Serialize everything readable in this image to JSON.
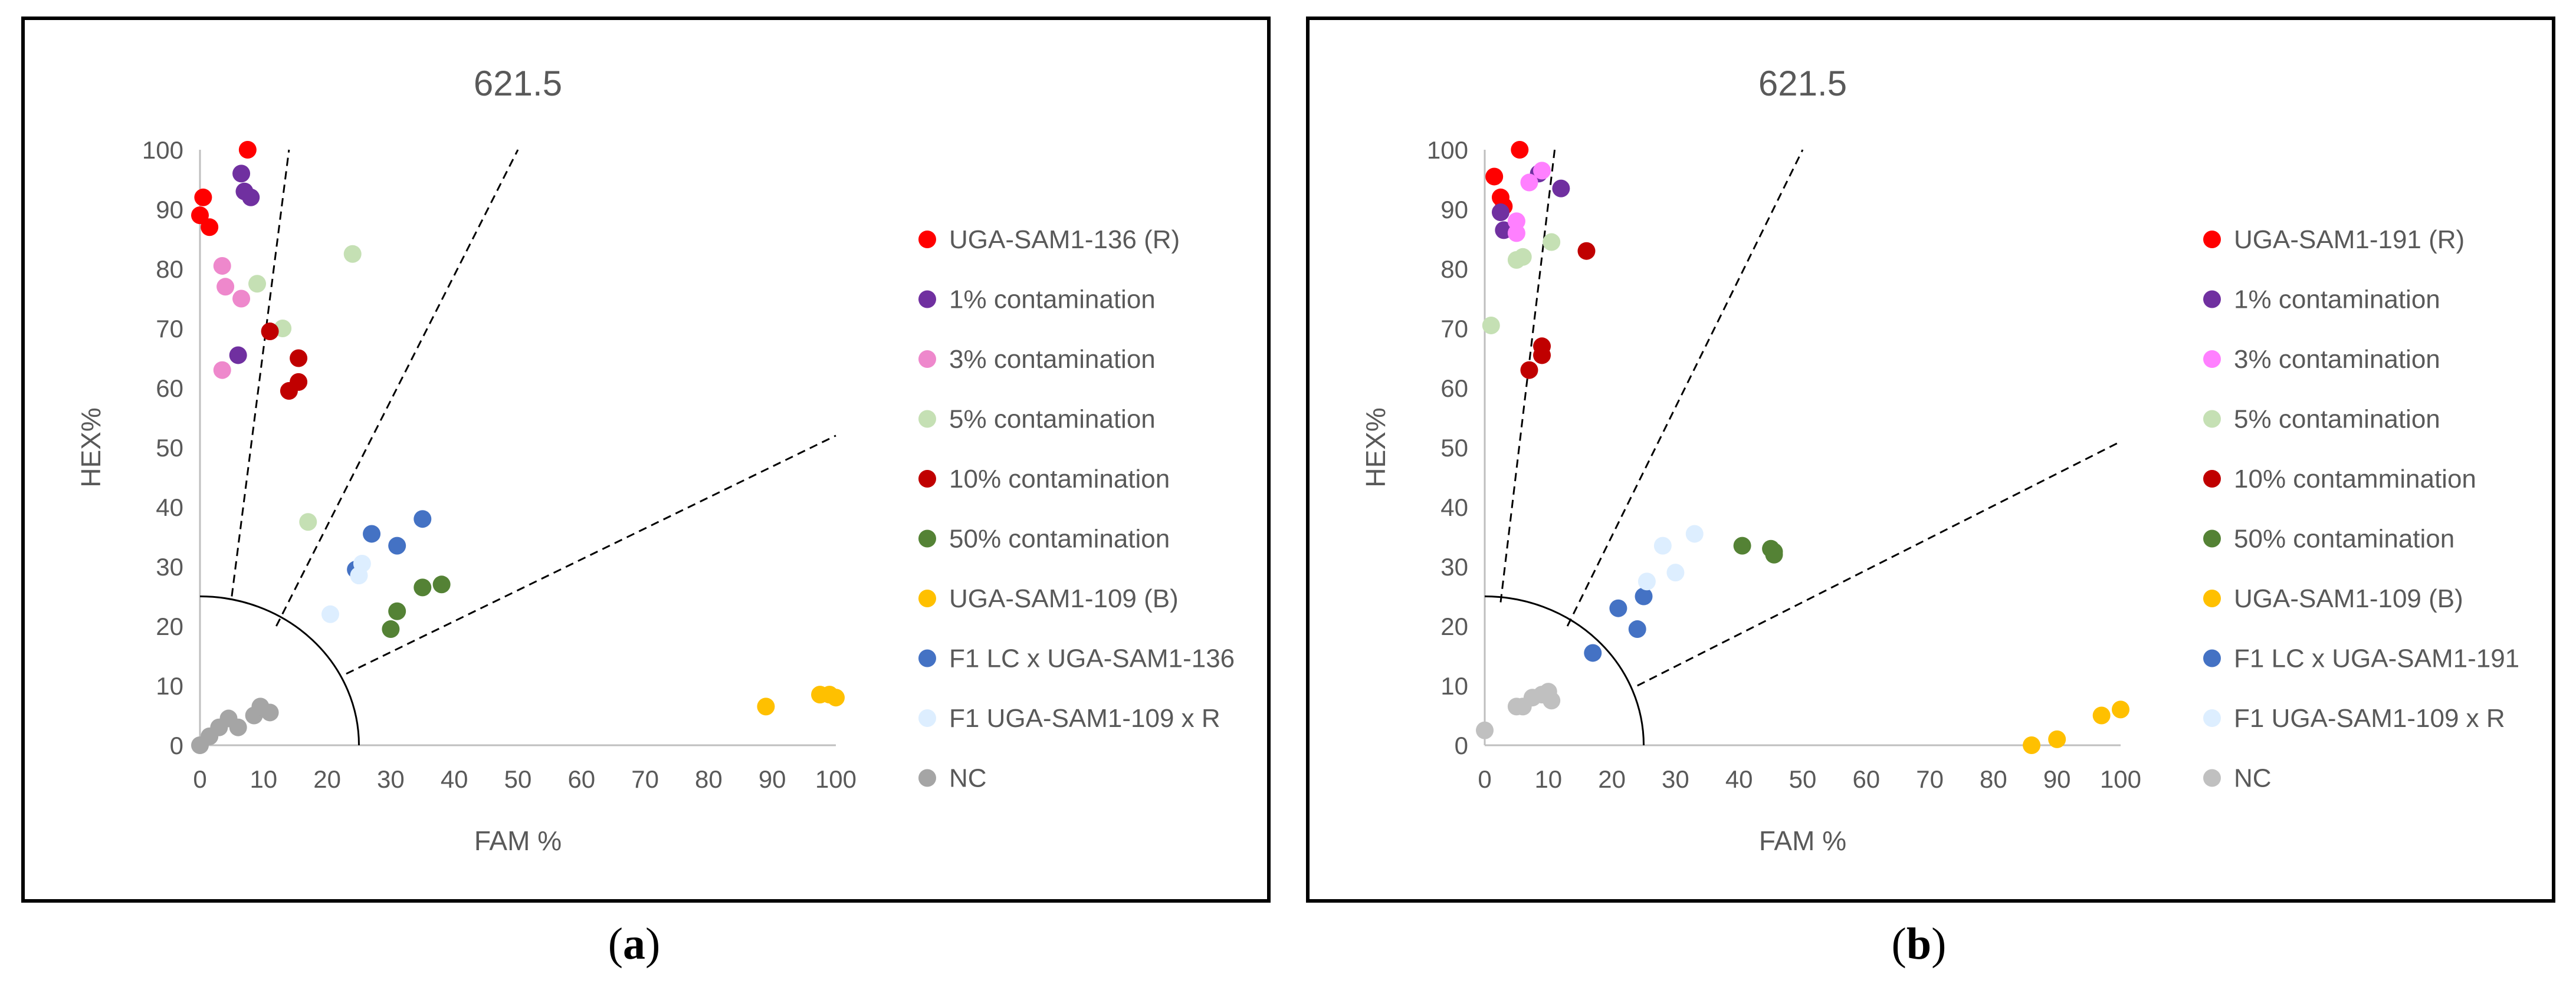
{
  "figure": {
    "captions": [
      {
        "open": "(",
        "label": "a",
        "close": ")"
      },
      {
        "open": "(",
        "label": "b",
        "close": ")"
      }
    ]
  },
  "chart_data": [
    {
      "type": "scatter",
      "title": "621.5",
      "xlabel": "FAM %",
      "ylabel": "HEX%",
      "xlim": [
        0,
        100
      ],
      "ylim": [
        0,
        100
      ],
      "x_ticks": [
        0,
        10,
        20,
        30,
        40,
        50,
        60,
        70,
        80,
        90,
        100
      ],
      "y_ticks": [
        0,
        10,
        20,
        30,
        40,
        50,
        60,
        70,
        80,
        90,
        100
      ],
      "grid": false,
      "legend_position": "right",
      "guides": {
        "quarter_circle_radius": 25,
        "dashed_lines": [
          {
            "from": [
              5,
              25
            ],
            "to": [
              14,
              100
            ]
          },
          {
            "from": [
              12,
              20
            ],
            "to": [
              50,
              100
            ]
          },
          {
            "from": [
              23,
              12
            ],
            "to": [
              100,
              52
            ]
          }
        ]
      },
      "series": [
        {
          "name": "UGA-SAM1-136 (R)",
          "color": "#ff0000",
          "points": [
            [
              0,
              89
            ],
            [
              0.5,
              92
            ],
            [
              1.5,
              87
            ],
            [
              7.5,
              100
            ]
          ]
        },
        {
          "name": "1% contamination",
          "color": "#7030a0",
          "points": [
            [
              6.5,
              96
            ],
            [
              7,
              93
            ],
            [
              8,
              92
            ],
            [
              6,
              65.5
            ]
          ]
        },
        {
          "name": "3% contamination",
          "color": "#ee88cc",
          "points": [
            [
              3.5,
              80.5
            ],
            [
              4,
              77
            ],
            [
              6.5,
              75
            ],
            [
              3.5,
              63
            ]
          ]
        },
        {
          "name": "5% contamination",
          "color": "#c5e0b4",
          "points": [
            [
              24,
              82.5
            ],
            [
              9,
              77.5
            ],
            [
              13,
              70
            ],
            [
              17,
              37.5
            ]
          ]
        },
        {
          "name": "10% contamination",
          "color": "#c00000",
          "points": [
            [
              11,
              69.5
            ],
            [
              15.5,
              65
            ],
            [
              15.5,
              61
            ],
            [
              14,
              59.5
            ]
          ]
        },
        {
          "name": "50% contamination",
          "color": "#548235",
          "points": [
            [
              35,
              26.5
            ],
            [
              38,
              27
            ],
            [
              31,
              22.5
            ],
            [
              30,
              19.5
            ]
          ]
        },
        {
          "name": "UGA-SAM1-109 (B)",
          "color": "#ffc000",
          "points": [
            [
              89,
              6.5
            ],
            [
              97.5,
              8.5
            ],
            [
              99,
              8.5
            ],
            [
              100,
              8
            ]
          ]
        },
        {
          "name": "F1 LC x UGA-SAM1-136",
          "color": "#4472c4",
          "points": [
            [
              35,
              38
            ],
            [
              27,
              35.5
            ],
            [
              31,
              33.5
            ],
            [
              24.5,
              29.5
            ]
          ]
        },
        {
          "name": "F1 UGA-SAM1-109 x R",
          "color": "#ddeeff",
          "points": [
            [
              25.5,
              30.5
            ],
            [
              25,
              28.5
            ],
            [
              20.5,
              22
            ]
          ]
        },
        {
          "name": "NC",
          "color": "#a5a5a5",
          "points": [
            [
              0,
              0
            ],
            [
              1.5,
              1.5
            ],
            [
              3,
              3
            ],
            [
              4.5,
              4.5
            ],
            [
              6,
              3
            ],
            [
              8.5,
              5
            ],
            [
              9.5,
              6.5
            ],
            [
              11,
              5.5
            ]
          ]
        }
      ]
    },
    {
      "type": "scatter",
      "title": "621.5",
      "xlabel": "FAM %",
      "ylabel": "HEX%",
      "xlim": [
        0,
        100
      ],
      "ylim": [
        0,
        100
      ],
      "x_ticks": [
        0,
        10,
        20,
        30,
        40,
        50,
        60,
        70,
        80,
        90,
        100
      ],
      "y_ticks": [
        0,
        10,
        20,
        30,
        40,
        50,
        60,
        70,
        80,
        90,
        100
      ],
      "grid": false,
      "legend_position": "right",
      "guides": {
        "quarter_circle_radius": 25,
        "dashed_lines": [
          {
            "from": [
              2.5,
              24
            ],
            "to": [
              11,
              100
            ]
          },
          {
            "from": [
              13,
              20
            ],
            "to": [
              50,
              100
            ]
          },
          {
            "from": [
              24,
              10
            ],
            "to": [
              100,
              51
            ]
          }
        ]
      },
      "series": [
        {
          "name": "UGA-SAM1-191 (R)",
          "color": "#ff0000",
          "points": [
            [
              5.5,
              100
            ],
            [
              1.5,
              95.5
            ],
            [
              2.5,
              92
            ],
            [
              3,
              90.5
            ]
          ]
        },
        {
          "name": "1% contamination",
          "color": "#7030a0",
          "points": [
            [
              2.5,
              89.5
            ],
            [
              3,
              86.5
            ],
            [
              8.5,
              96
            ],
            [
              12,
              93.5
            ]
          ]
        },
        {
          "name": "3% contamination",
          "color": "#ff80ff",
          "points": [
            [
              5,
              88
            ],
            [
              5,
              86
            ],
            [
              7,
              94.5
            ],
            [
              9,
              96.5
            ]
          ]
        },
        {
          "name": "5% contamination",
          "color": "#c5e0b4",
          "points": [
            [
              1,
              70.5
            ],
            [
              5,
              81.5
            ],
            [
              6,
              82
            ],
            [
              10.5,
              84.5
            ]
          ]
        },
        {
          "name": "10% contammination",
          "color": "#c00000",
          "points": [
            [
              16,
              83
            ],
            [
              9,
              67
            ],
            [
              9,
              65.5
            ],
            [
              7,
              63
            ]
          ]
        },
        {
          "name": "50% contamination",
          "color": "#548235",
          "points": [
            [
              40.5,
              33.5
            ],
            [
              45,
              33
            ],
            [
              45.5,
              32.5
            ],
            [
              45.5,
              32
            ]
          ]
        },
        {
          "name": "UGA-SAM1-109 (B)",
          "color": "#ffc000",
          "points": [
            [
              86,
              0
            ],
            [
              90,
              1
            ],
            [
              97,
              5
            ],
            [
              100,
              6
            ]
          ]
        },
        {
          "name": "F1 LC x UGA-SAM1-191",
          "color": "#4472c4",
          "points": [
            [
              21,
              23
            ],
            [
              25,
              25
            ],
            [
              24,
              19.5
            ],
            [
              17,
              15.5
            ]
          ]
        },
        {
          "name": "F1 UGA-SAM1-109 x R",
          "color": "#ddeeff",
          "points": [
            [
              33,
              35.5
            ],
            [
              28,
              33.5
            ],
            [
              30,
              29
            ],
            [
              25.5,
              27.5
            ]
          ]
        },
        {
          "name": "NC",
          "color": "#c0c0c0",
          "points": [
            [
              0,
              2.5
            ],
            [
              5,
              6.5
            ],
            [
              6,
              6.5
            ],
            [
              7.5,
              8
            ],
            [
              9,
              8.5
            ],
            [
              10,
              9
            ],
            [
              10.5,
              7.5
            ]
          ]
        }
      ]
    }
  ]
}
